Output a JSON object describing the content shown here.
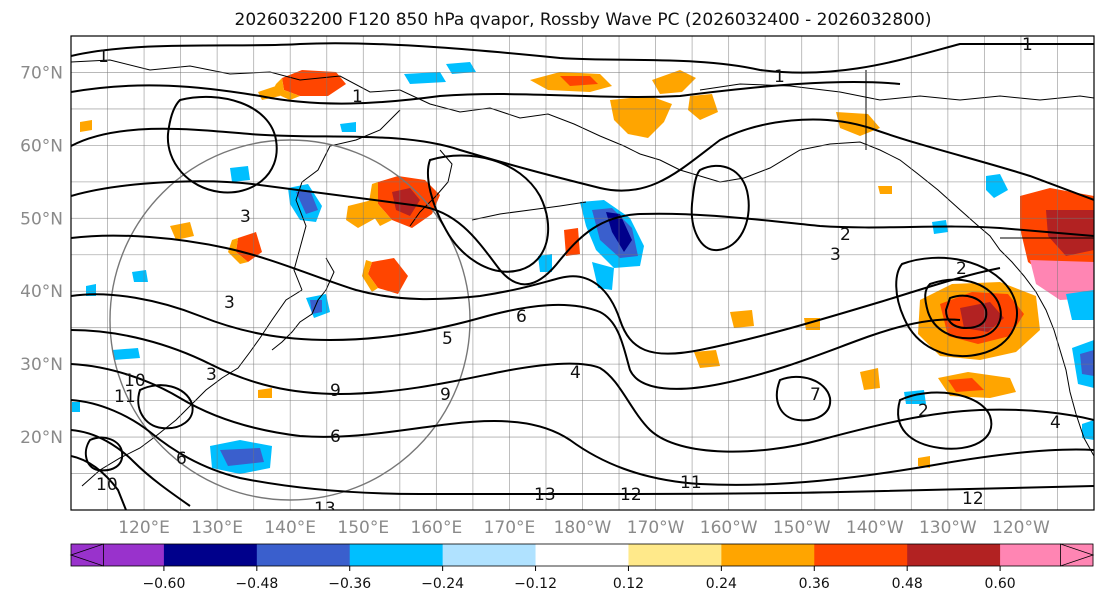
{
  "title": "2026032200 F120 850 hPa qvapor, Rossby Wave PC (2026032400 - 2026032800)",
  "map": {
    "lat_labels": [
      "20°N",
      "30°N",
      "40°N",
      "50°N",
      "60°N",
      "70°N"
    ],
    "lat_values": [
      20,
      30,
      40,
      50,
      60,
      70
    ],
    "lon_labels": [
      "120°E",
      "130°E",
      "140°E",
      "150°E",
      "160°E",
      "170°E",
      "180°W",
      "170°W",
      "160°W",
      "150°W",
      "140°W",
      "130°W",
      "120°W"
    ],
    "lon_values": [
      120,
      130,
      140,
      150,
      160,
      170,
      180,
      190,
      200,
      210,
      220,
      230,
      240
    ],
    "lat_range": [
      10,
      75
    ],
    "lon_range": [
      110,
      250
    ],
    "contour_labels": [
      "1",
      "1",
      "1",
      "2",
      "3",
      "3",
      "5",
      "6",
      "9",
      "9",
      "7",
      "6",
      "4",
      "2",
      "4",
      "11",
      "12",
      "13",
      "13",
      "12",
      "10",
      "11",
      "10",
      "6",
      "3",
      "2",
      "1",
      "3"
    ]
  },
  "colorbar": {
    "ticks": [
      "−0.60",
      "−0.48",
      "−0.36",
      "−0.24",
      "−0.12",
      "0.12",
      "0.24",
      "0.36",
      "0.48",
      "0.60"
    ],
    "tick_values": [
      -0.6,
      -0.48,
      -0.36,
      -0.24,
      -0.12,
      0.12,
      0.24,
      0.36,
      0.48,
      0.6
    ],
    "colors": [
      "#9932cc",
      "#00008b",
      "#3a5fcd",
      "#00bfff",
      "#b0e2ff",
      "#ffffff",
      "#ffe98a",
      "#ffa500",
      "#ff4500",
      "#b22222",
      "#ff85b3",
      "#ff85b3"
    ]
  }
}
